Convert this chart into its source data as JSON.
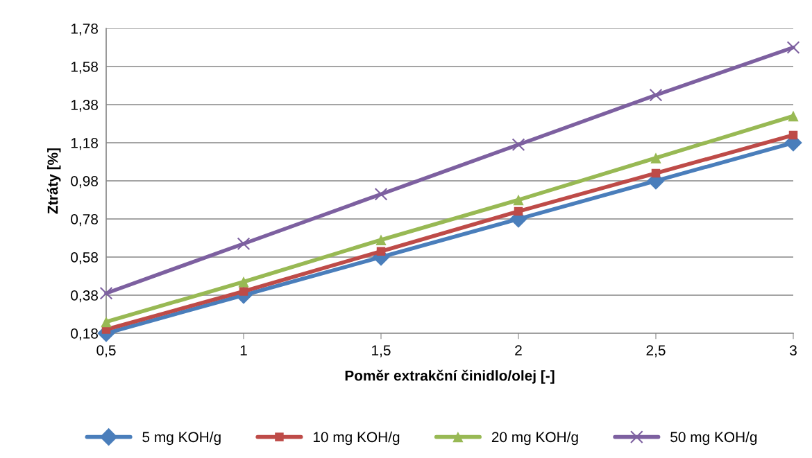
{
  "chart_data": {
    "type": "line",
    "xlabel": "Poměr extrakční činidlo/olej [-]",
    "ylabel": "Ztráty [%]",
    "x": [
      0.5,
      1,
      1.5,
      2,
      2.5,
      3
    ],
    "xlim": [
      0.5,
      3
    ],
    "xticks": [
      {
        "value": 0.5,
        "label": "0,5"
      },
      {
        "value": 1,
        "label": "1"
      },
      {
        "value": 1.5,
        "label": "1,5"
      },
      {
        "value": 2,
        "label": "2"
      },
      {
        "value": 2.5,
        "label": "2,5"
      },
      {
        "value": 3,
        "label": "3"
      }
    ],
    "ylim": [
      0.18,
      1.78
    ],
    "yticks": [
      {
        "value": 0.18,
        "label": "0,18"
      },
      {
        "value": 0.38,
        "label": "0,38"
      },
      {
        "value": 0.58,
        "label": "0,58"
      },
      {
        "value": 0.78,
        "label": "0,78"
      },
      {
        "value": 0.98,
        "label": "0,98"
      },
      {
        "value": 1.18,
        "label": "1,18"
      },
      {
        "value": 1.38,
        "label": "1,38"
      },
      {
        "value": 1.58,
        "label": "1,58"
      },
      {
        "value": 1.78,
        "label": "1,78"
      }
    ],
    "grid": "y",
    "legend": "bottom",
    "line_style": "solid",
    "series": [
      {
        "name": "5 mg KOH/g",
        "color": "#4a7ebb",
        "marker": "diamond",
        "values": [
          0.18,
          0.38,
          0.58,
          0.78,
          0.98,
          1.18
        ]
      },
      {
        "name": "10 mg KOH/g",
        "color": "#be4b48",
        "marker": "square",
        "values": [
          0.2,
          0.4,
          0.61,
          0.82,
          1.02,
          1.22
        ]
      },
      {
        "name": "20 mg KOH/g",
        "color": "#98b954",
        "marker": "triangle",
        "values": [
          0.24,
          0.45,
          0.67,
          0.88,
          1.1,
          1.32
        ]
      },
      {
        "name": "50 mg KOH/g",
        "color": "#7d60a0",
        "marker": "cross",
        "values": [
          0.39,
          0.65,
          0.91,
          1.17,
          1.43,
          1.68
        ]
      }
    ]
  }
}
